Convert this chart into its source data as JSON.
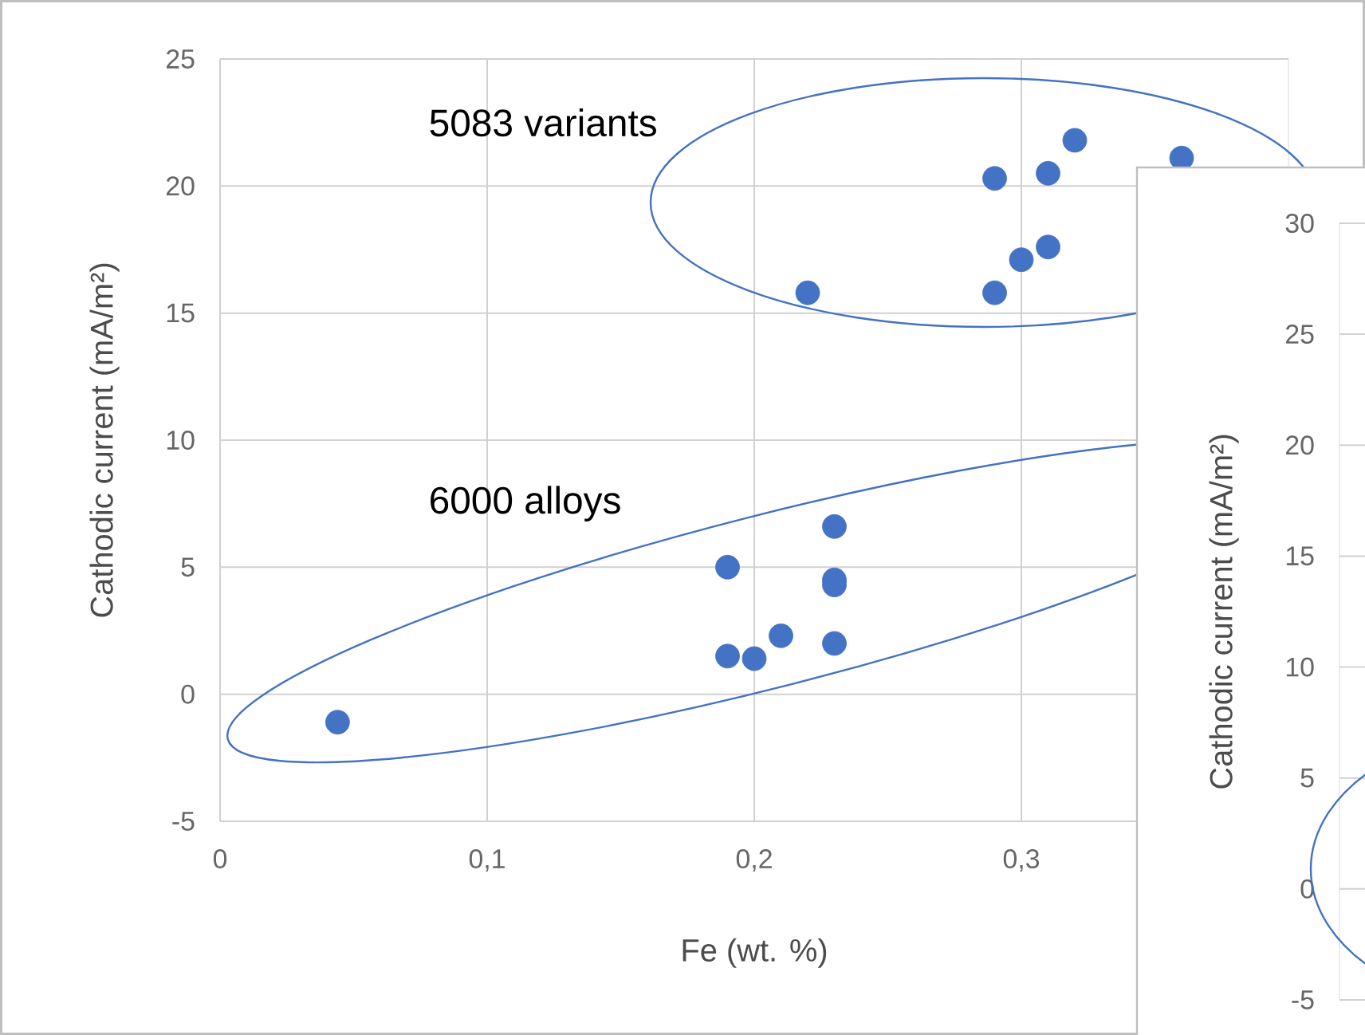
{
  "chart_data": [
    {
      "type": "scatter",
      "xlabel": "Fe (wt. %)",
      "ylabel": "Cathodic current (mA/m²)",
      "x": [
        0.044,
        0.19,
        0.19,
        0.2,
        0.21,
        0.23,
        0.23,
        0.23,
        0.23,
        0.22,
        0.29,
        0.29,
        0.3,
        0.31,
        0.31,
        0.32,
        0.36
      ],
      "values": [
        -1.1,
        5.0,
        1.5,
        1.4,
        2.3,
        6.6,
        4.5,
        4.3,
        2.0,
        15.8,
        20.3,
        15.8,
        17.1,
        17.6,
        20.5,
        21.8,
        21.1
      ],
      "color": "#4472c4",
      "marker": "circle",
      "grid": true,
      "xlim": [
        0,
        0.4
      ],
      "xticks": [
        0,
        {
          "value": 0.1,
          "label": "0,1"
        },
        {
          "value": 0.2,
          "label": "0,2"
        },
        {
          "value": 0.3,
          "label": "0,3"
        }
      ],
      "ylim": [
        -5,
        25
      ],
      "yticks": [
        -5,
        0,
        5,
        10,
        15,
        20,
        25
      ],
      "annotations": [
        "5083 variants",
        "6000 alloys"
      ]
    },
    {
      "type": "scatter",
      "ylabel": "Cathodic current (mA/m²)",
      "categories": [
        null
      ],
      "values": [
        null
      ],
      "grid": "y",
      "ylim": [
        -5,
        30
      ],
      "yticks": [
        -5,
        0,
        5,
        10,
        15,
        20,
        25,
        30
      ],
      "tick_labels": "y"
    }
  ]
}
